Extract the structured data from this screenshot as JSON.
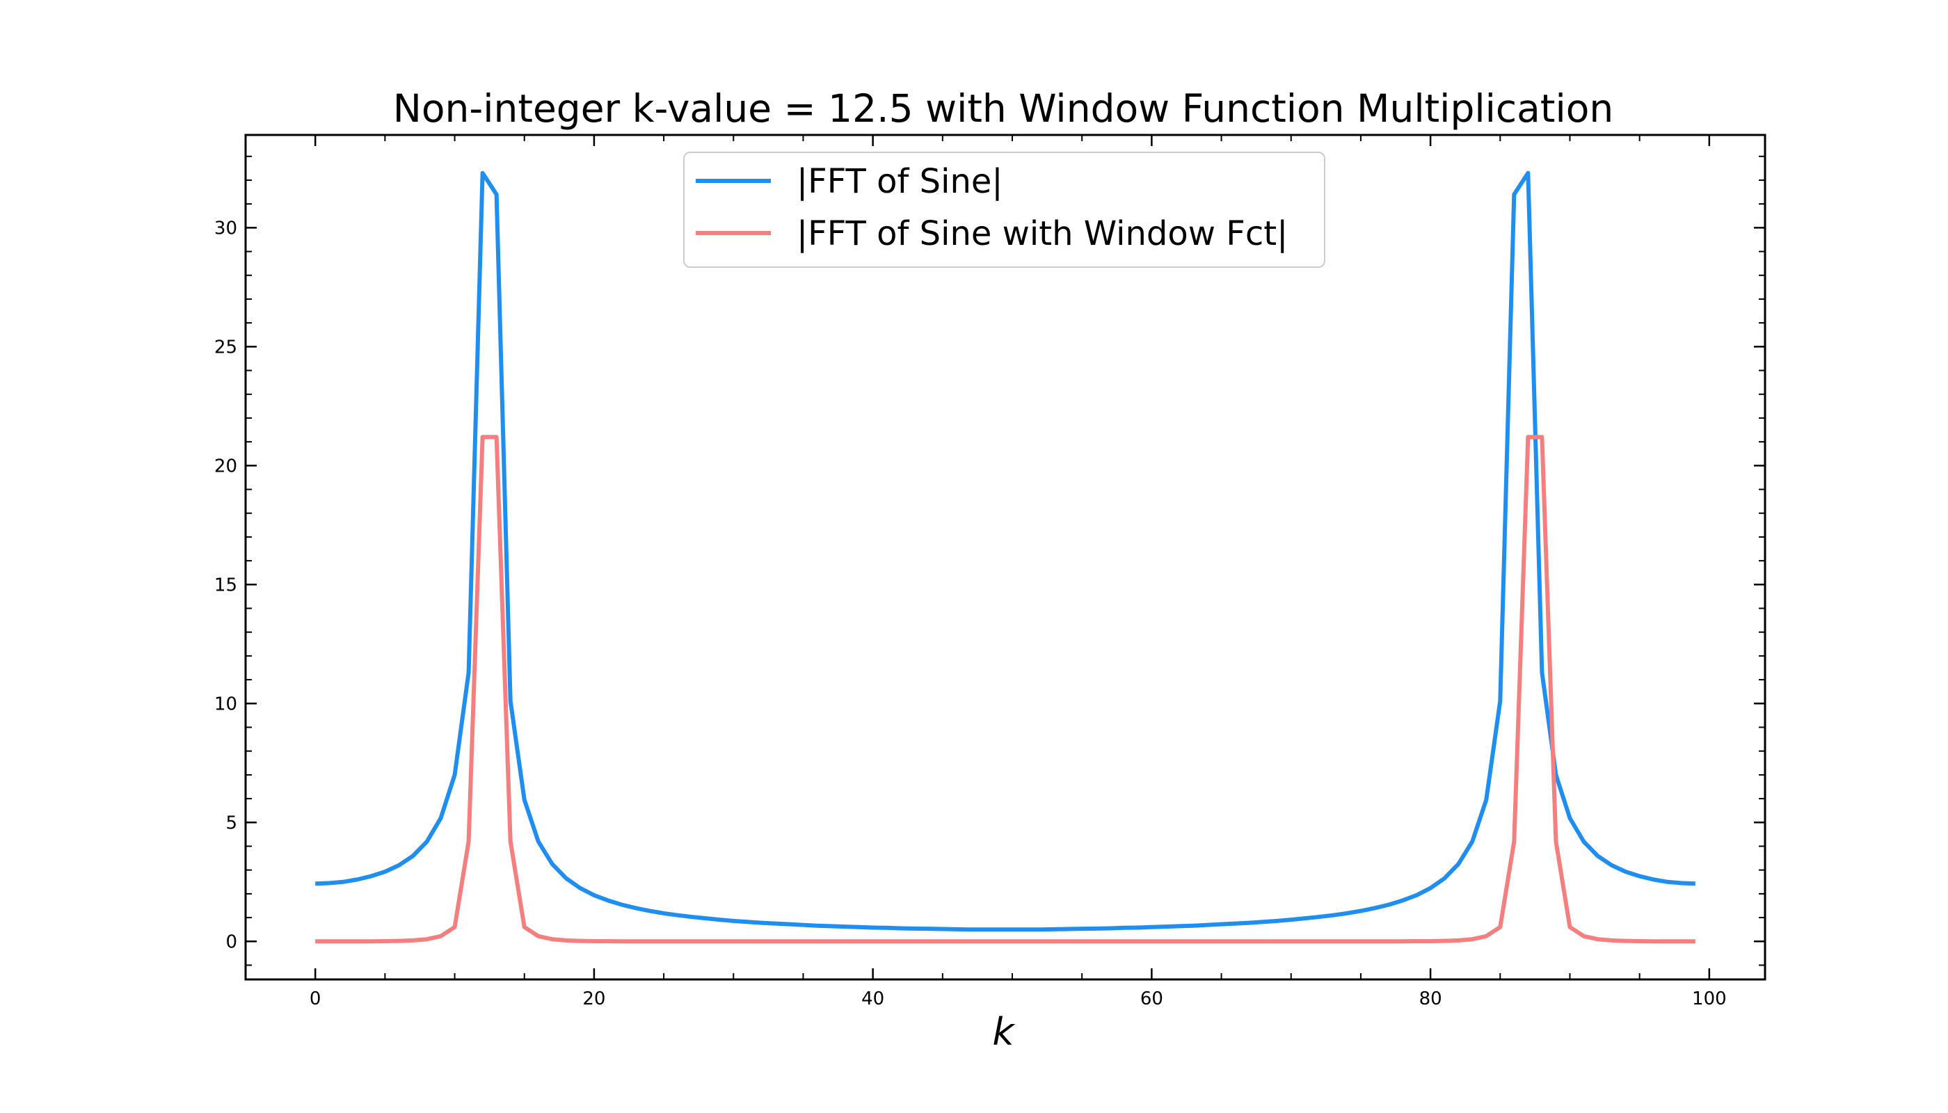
{
  "chart_data": {
    "type": "line",
    "title": "Non-integer k-value = 12.5 with Window Function Multiplication",
    "xlabel": "k",
    "ylabel": "",
    "xlim": [
      -5,
      104
    ],
    "ylim": [
      -1.6,
      33.9
    ],
    "x_ticks": [
      0,
      20,
      40,
      60,
      80,
      100
    ],
    "y_ticks": [
      0,
      5,
      10,
      15,
      20,
      25,
      30
    ],
    "x_tick_labels": [
      "0",
      "20",
      "40",
      "60",
      "80",
      "100"
    ],
    "y_tick_labels": [
      "0",
      "5",
      "10",
      "15",
      "20",
      "25",
      "30"
    ],
    "legend_position": "upper-center",
    "grid": false,
    "x": [
      0,
      1,
      2,
      3,
      4,
      5,
      6,
      7,
      8,
      9,
      10,
      11,
      12,
      13,
      14,
      15,
      16,
      17,
      18,
      19,
      20,
      21,
      22,
      23,
      24,
      25,
      26,
      27,
      28,
      29,
      30,
      31,
      32,
      33,
      34,
      35,
      36,
      37,
      38,
      39,
      40,
      41,
      42,
      43,
      44,
      45,
      46,
      47,
      48,
      49,
      50,
      51,
      52,
      53,
      54,
      55,
      56,
      57,
      58,
      59,
      60,
      61,
      62,
      63,
      64,
      65,
      66,
      67,
      68,
      69,
      70,
      71,
      72,
      73,
      74,
      75,
      76,
      77,
      78,
      79,
      80,
      81,
      82,
      83,
      84,
      85,
      86,
      87,
      88,
      89,
      90,
      91,
      92,
      93,
      94,
      95,
      96,
      97,
      98,
      99
    ],
    "series": [
      {
        "name": "|FFT of Sine|",
        "color": "#1f8ef1",
        "values": [
          2.43,
          2.45,
          2.5,
          2.6,
          2.74,
          2.93,
          3.2,
          3.59,
          4.19,
          5.18,
          7.0,
          11.3,
          32.3,
          31.4,
          10.1,
          5.95,
          4.2,
          3.25,
          2.65,
          2.24,
          1.94,
          1.72,
          1.54,
          1.4,
          1.28,
          1.18,
          1.1,
          1.03,
          0.97,
          0.91,
          0.86,
          0.82,
          0.78,
          0.75,
          0.72,
          0.69,
          0.66,
          0.64,
          0.62,
          0.6,
          0.58,
          0.57,
          0.55,
          0.54,
          0.53,
          0.52,
          0.51,
          0.5,
          0.5,
          0.5,
          0.5,
          0.5,
          0.5,
          0.51,
          0.52,
          0.53,
          0.54,
          0.55,
          0.57,
          0.58,
          0.6,
          0.62,
          0.64,
          0.66,
          0.69,
          0.72,
          0.75,
          0.78,
          0.82,
          0.86,
          0.91,
          0.97,
          1.03,
          1.1,
          1.18,
          1.28,
          1.4,
          1.54,
          1.72,
          1.94,
          2.24,
          2.65,
          3.25,
          4.2,
          5.95,
          10.1,
          31.4,
          32.3,
          11.3,
          7.0,
          5.18,
          4.19,
          3.59,
          3.2,
          2.93,
          2.74,
          2.6,
          2.5,
          2.45,
          2.43
        ]
      },
      {
        "name": "|FFT of Sine with Window Fct|",
        "color": "#f57f7f",
        "values": [
          0.0,
          0.0,
          0.0,
          0.0,
          0.0,
          0.01,
          0.02,
          0.04,
          0.09,
          0.22,
          0.6,
          4.2,
          21.2,
          21.2,
          4.2,
          0.6,
          0.22,
          0.09,
          0.04,
          0.02,
          0.01,
          0.01,
          0.0,
          0.0,
          0.0,
          0.0,
          0.0,
          0.0,
          0.0,
          0.0,
          0.0,
          0.0,
          0.0,
          0.0,
          0.0,
          0.0,
          0.0,
          0.0,
          0.0,
          0.0,
          0.0,
          0.0,
          0.0,
          0.0,
          0.0,
          0.0,
          0.0,
          0.0,
          0.0,
          0.0,
          0.0,
          0.0,
          0.0,
          0.0,
          0.0,
          0.0,
          0.0,
          0.0,
          0.0,
          0.0,
          0.0,
          0.0,
          0.0,
          0.0,
          0.0,
          0.0,
          0.0,
          0.0,
          0.0,
          0.0,
          0.0,
          0.0,
          0.0,
          0.0,
          0.0,
          0.0,
          0.0,
          0.0,
          0.0,
          0.01,
          0.01,
          0.02,
          0.04,
          0.09,
          0.22,
          0.6,
          4.2,
          21.2,
          21.2,
          4.2,
          0.6,
          0.22,
          0.09,
          0.04,
          0.02,
          0.01,
          0.0,
          0.0,
          0.0,
          0.0
        ]
      }
    ]
  }
}
